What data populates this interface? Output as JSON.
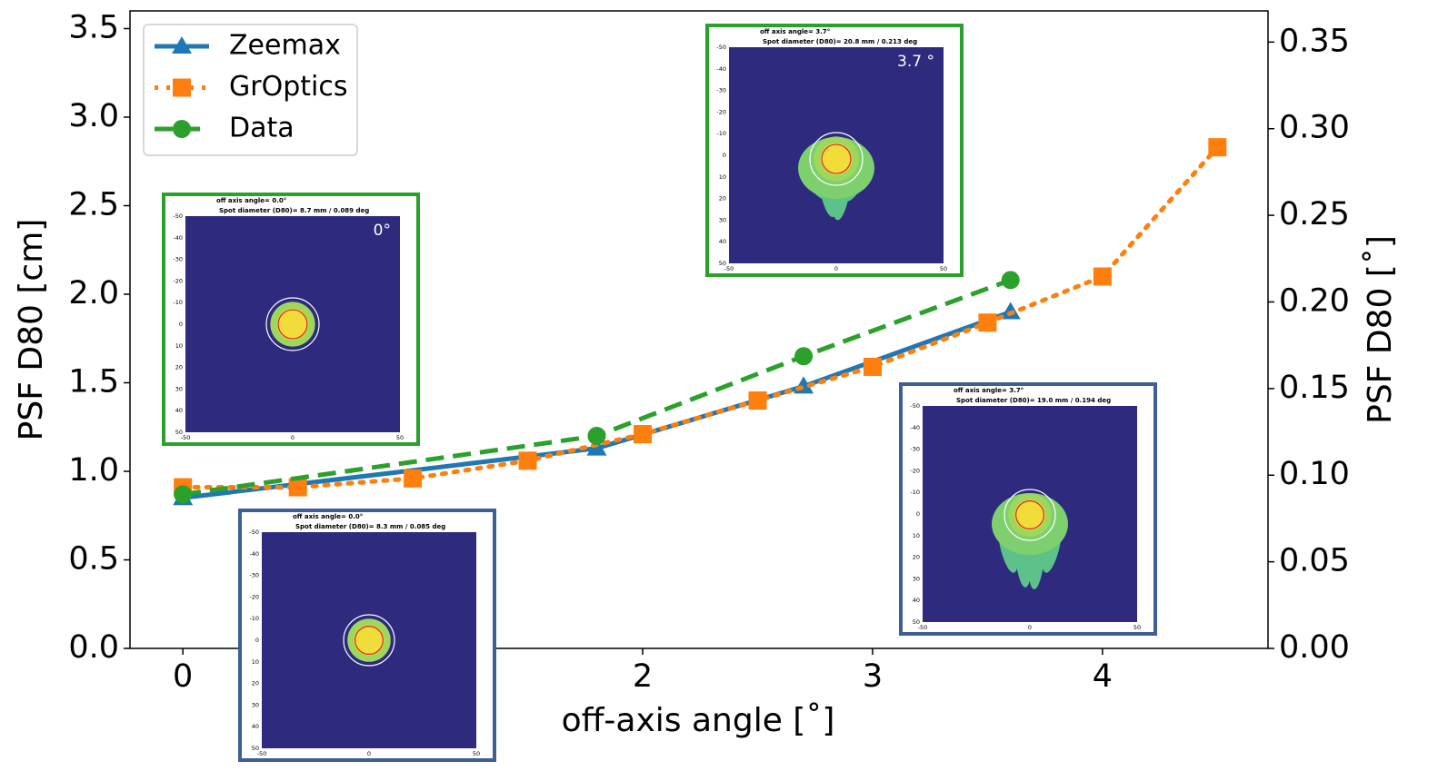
{
  "chart_data": {
    "type": "line",
    "xlabel": "off-axis angle [˚]",
    "ylabel": "PSF D80 [cm]",
    "y2label": "PSF D80 [˚]",
    "xlim": [
      -0.23,
      4.72
    ],
    "xticks": [
      0,
      2,
      3,
      4
    ],
    "ylim": [
      0,
      3.6
    ],
    "yticks": [
      {
        "value": 0,
        "label": "0.0"
      },
      0.5,
      {
        "value": 1,
        "label": "1.0"
      },
      1.5,
      {
        "value": 2,
        "label": "2.0"
      },
      2.5,
      {
        "value": 3,
        "label": "3.0"
      },
      3.5
    ],
    "y2lim": [
      0,
      0.368
    ],
    "y2ticks": [
      {
        "value": 0,
        "label": "0.00"
      },
      0.05,
      {
        "value": 0.1,
        "label": "0.10"
      },
      0.15,
      {
        "value": 0.2,
        "label": "0.20"
      },
      0.25,
      {
        "value": 0.3,
        "label": "0.30"
      },
      0.35
    ],
    "legend": "upper-left",
    "series": [
      {
        "name": "Zeemax",
        "color": "#1f77b4",
        "marker": "triangle",
        "dash": "solid",
        "x": [
          0,
          1.8,
          2.7,
          3.6
        ],
        "values": [
          0.85,
          1.13,
          1.48,
          1.9
        ]
      },
      {
        "name": "GrOptics",
        "color": "#ff7f0e",
        "marker": "square",
        "dash": "dotted",
        "x": [
          0,
          0.5,
          1.0,
          1.5,
          2.0,
          2.5,
          3.0,
          3.5,
          4.0,
          4.5
        ],
        "values": [
          0.91,
          0.91,
          0.96,
          1.06,
          1.21,
          1.4,
          1.59,
          1.84,
          2.1,
          2.83
        ]
      },
      {
        "name": "Data",
        "color": "#2ca02c",
        "marker": "circle",
        "dash": "dashed",
        "x": [
          0,
          1.8,
          2.7,
          3.6
        ],
        "values": [
          0.87,
          1.2,
          1.65,
          2.08
        ]
      }
    ],
    "inset_yticks": [
      -50,
      -40,
      -30,
      -20,
      -10,
      0,
      10,
      20,
      30,
      40,
      50
    ],
    "inset_xticks": [
      -50,
      0,
      50
    ],
    "insets": [
      {
        "title": "off axis angle= 0.0°",
        "subtitle": "Spot diameter (D80)= 8.7 mm / 0.089 deg",
        "label": "0°",
        "color": "#2ca02c"
      },
      {
        "title": "off axis angle= 0.0°",
        "subtitle": "Spot diameter (D80)= 8.3 mm / 0.085 deg",
        "color": "#3d5f94"
      },
      {
        "title": "off axis angle= 3.7°",
        "subtitle": "Spot diameter (D80)= 20.8 mm / 0.213 deg",
        "label": "3.7 °",
        "color": "#2ca02c"
      },
      {
        "title": "off axis angle= 3.7°",
        "subtitle": "Spot diameter (D80)= 19.0 mm / 0.194 deg",
        "color": "#3d5f94"
      }
    ]
  }
}
